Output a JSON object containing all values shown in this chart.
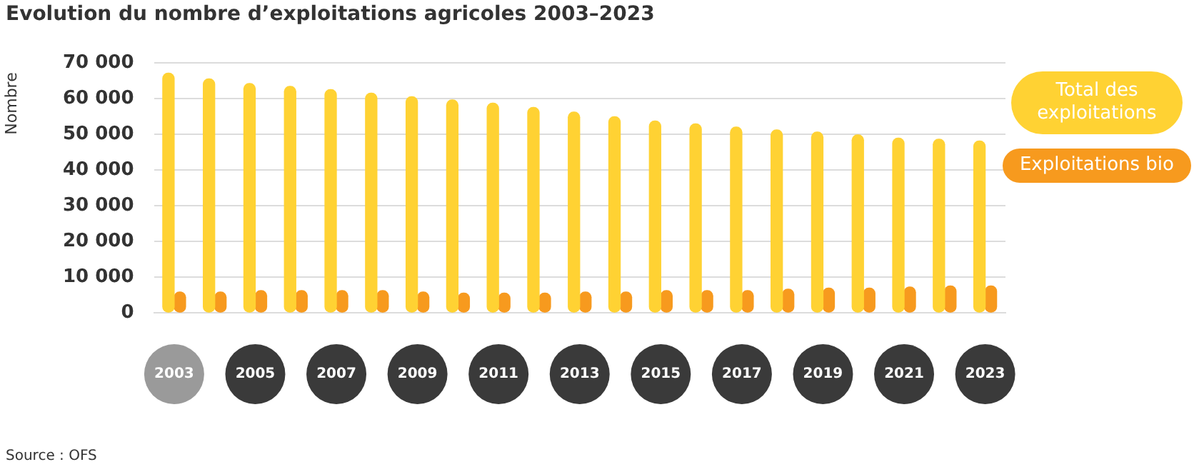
{
  "chart_data": {
    "type": "bar",
    "title": "Evolution du nombre d’exploitations agricoles 2003–2023",
    "ylabel": "Nombre",
    "categories": [
      "2003",
      null,
      "2005",
      null,
      "2007",
      null,
      "2009",
      null,
      "2011",
      null,
      "2013",
      null,
      "2015",
      null,
      "2017",
      null,
      "2019",
      null,
      "2021",
      null,
      "2023"
    ],
    "series": [
      {
        "name": "Total des exploitations",
        "color": "#ffd233",
        "values": [
          67100,
          65500,
          64200,
          63400,
          62500,
          61500,
          60500,
          59600,
          58700,
          57500,
          56200,
          54900,
          53700,
          52900,
          52000,
          51200,
          50600,
          49800,
          48900,
          48600,
          48100
        ]
      },
      {
        "name": "Exploitations bio",
        "color": "#f79a1e",
        "values": [
          5800,
          5800,
          6200,
          6200,
          6200,
          6200,
          5800,
          5500,
          5500,
          5500,
          5800,
          5800,
          6200,
          6200,
          6200,
          6600,
          6900,
          6900,
          7200,
          7500,
          7500
        ]
      }
    ],
    "ylim": [
      0,
      70000
    ],
    "yticks": [
      {
        "value": 0,
        "label": "0"
      },
      {
        "value": 10000,
        "label": "10 000"
      },
      {
        "value": 20000,
        "label": "20 000"
      },
      {
        "value": 30000,
        "label": "30 000"
      },
      {
        "value": 40000,
        "label": "40 000"
      },
      {
        "value": 50000,
        "label": "50 000"
      },
      {
        "value": 60000,
        "label": "60 000"
      },
      {
        "value": 70000,
        "label": "70 000"
      }
    ],
    "grid": "y",
    "legend": "right",
    "annotations": [
      "Source : OFS"
    ]
  }
}
